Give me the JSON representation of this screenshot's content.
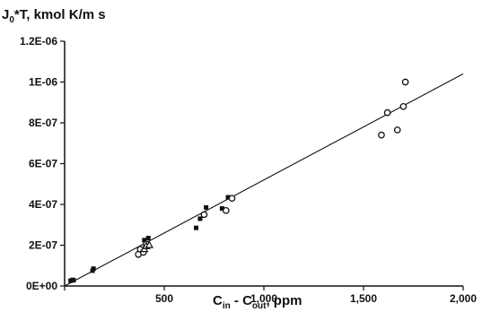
{
  "chart_data": {
    "type": "scatter",
    "ylabel": "J0*T, kmol K/m s",
    "ylabel_parts": {
      "base": "J",
      "sub": "0",
      "rest": "*T, kmol K/m s"
    },
    "xlabel": "Cin - Cout, ppm",
    "xlabel_parts": {
      "c1": "C",
      "sub1": "in",
      "mid": " - C",
      "sub2": "out",
      "rest": ",  ppm"
    },
    "xlim": [
      0,
      2000
    ],
    "ylim": [
      0,
      1.2e-06
    ],
    "xticks": [
      0,
      500,
      1000,
      1500,
      2000
    ],
    "xtick_labels": [
      "",
      "500",
      "1,000",
      "1,500",
      "2,000"
    ],
    "yticks": [
      0,
      2e-07,
      4e-07,
      6e-07,
      8e-07,
      1e-06,
      1.2e-06
    ],
    "ytick_labels": [
      "0E+00",
      "2E-07",
      "4E-07",
      "6E-07",
      "8E-07",
      "1E-06",
      "1.2E-06"
    ],
    "grid": false,
    "legend": "none",
    "colors": {
      "ink": "#111111",
      "background": "#ffffff"
    },
    "series": [
      {
        "marker": "filled-square",
        "points": [
          [
            30,
            2.6e-08
          ],
          [
            40,
            3e-08
          ],
          [
            45,
            2.8e-08
          ],
          [
            140,
            7.5e-08
          ],
          [
            145,
            8.5e-08
          ],
          [
            380,
            1.75e-07
          ],
          [
            400,
            2.25e-07
          ],
          [
            420,
            2.35e-07
          ],
          [
            660,
            2.85e-07
          ],
          [
            680,
            3.3e-07
          ],
          [
            710,
            3.85e-07
          ],
          [
            790,
            3.8e-07
          ],
          [
            820,
            4.35e-07
          ]
        ]
      },
      {
        "marker": "open-circle",
        "points": [
          [
            370,
            1.55e-07
          ],
          [
            380,
            1.8e-07
          ],
          [
            395,
            1.65e-07
          ],
          [
            410,
            2.05e-07
          ],
          [
            700,
            3.5e-07
          ],
          [
            810,
            3.7e-07
          ],
          [
            840,
            4.3e-07
          ],
          [
            1590,
            7.4e-07
          ],
          [
            1620,
            8.5e-07
          ],
          [
            1670,
            7.65e-07
          ],
          [
            1700,
            8.8e-07
          ],
          [
            1710,
            1e-06
          ]
        ]
      },
      {
        "marker": "open-triangle",
        "points": [
          [
            400,
            1.8e-07
          ],
          [
            410,
            1.95e-07
          ],
          [
            425,
            2e-07
          ]
        ]
      }
    ],
    "fit_line": {
      "x": [
        0,
        2000
      ],
      "y": [
        0,
        1.04e-06
      ]
    }
  }
}
